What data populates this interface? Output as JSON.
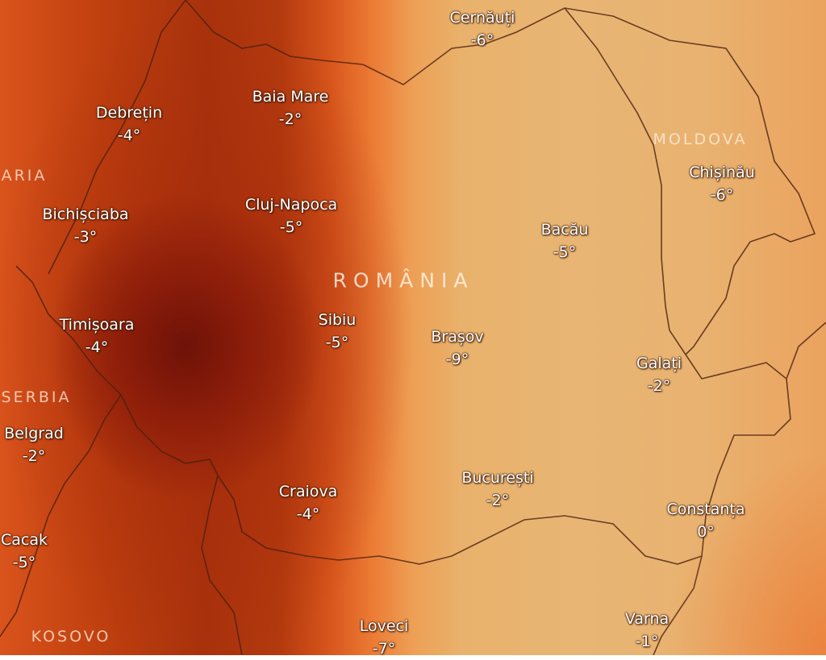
{
  "map": {
    "type": "temperature-wind-map",
    "countries": [
      "ROMÂNIA",
      "MOLDOVA",
      "ARIA",
      "SERBIA",
      "KOSOVO"
    ],
    "cities": [
      {
        "name": "Cernăuți",
        "temp": "-6°"
      },
      {
        "name": "Baia Mare",
        "temp": "-2°"
      },
      {
        "name": "Debrețin",
        "temp": "-4°"
      },
      {
        "name": "Cluj-Napoca",
        "temp": "-5°"
      },
      {
        "name": "Bichișciaba",
        "temp": "-3°"
      },
      {
        "name": "Bacău",
        "temp": "-5°"
      },
      {
        "name": "Chișinău",
        "temp": "-6°"
      },
      {
        "name": "Sibiu",
        "temp": "-5°"
      },
      {
        "name": "Timișoara",
        "temp": "-4°"
      },
      {
        "name": "Brașov",
        "temp": "-9°"
      },
      {
        "name": "Galați",
        "temp": "-2°"
      },
      {
        "name": "Belgrad",
        "temp": "-2°"
      },
      {
        "name": "București",
        "temp": "-2°"
      },
      {
        "name": "Craiova",
        "temp": "-4°"
      },
      {
        "name": "Constanța",
        "temp": "0°"
      },
      {
        "name": "Cacak",
        "temp": "-5°"
      },
      {
        "name": "Loveci",
        "temp": "-7°"
      },
      {
        "name": "Varna",
        "temp": "-1°"
      }
    ],
    "colors": {
      "cold_extreme": "#6e1208",
      "cold": "#c0400f",
      "mild": "#e8b574"
    }
  }
}
